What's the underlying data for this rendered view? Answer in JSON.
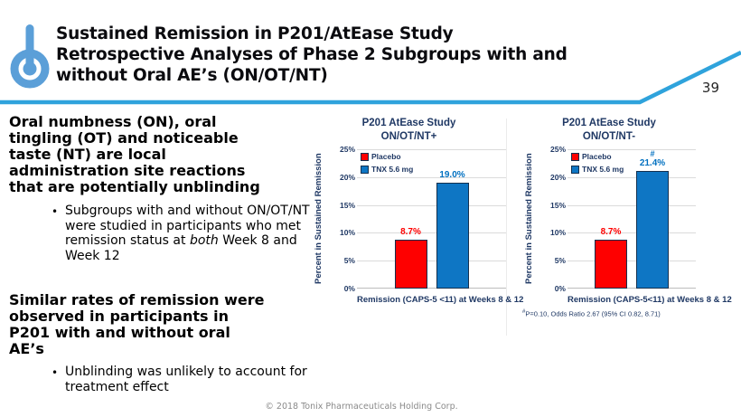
{
  "page_number": "39",
  "header": {
    "title_lines": [
      "Sustained Remission in P201/AtEase Study",
      "Retrospective Analyses of Phase 2 Subgroups with and",
      "without Oral AE’s (ON/OT/NT)"
    ],
    "logo_icon": "power-button-icon",
    "logo_color": "#5B9FD8",
    "accent_line_color": "#2FA3DC"
  },
  "left_panel": {
    "heading1_lines": [
      "Oral numbness (ON), oral",
      "tingling (OT) and noticeable",
      "taste (NT) are local",
      "administration site reactions",
      "that are potentially unblinding"
    ],
    "bullet1": {
      "before": "Subgroups with and without ON/OT/NT were studied in participants who met remission status at ",
      "italic": "both",
      "after": " Week 8 and Week 12"
    },
    "heading2_lines": [
      "Similar rates of remission were",
      "observed in participants in",
      "P201 with and without oral",
      "AE’s"
    ],
    "bullet2": "Unblinding was unlikely to account for treatment effect",
    "bullet_char": "•"
  },
  "footer": {
    "copyright": "© 2018 Tonix Pharmaceuticals Holding Corp."
  },
  "chart_data": [
    {
      "type": "bar",
      "title": "P201 AtEase Study",
      "subtitle": "ON/OT/NT+",
      "ylabel": "Percent in Sustained Remission",
      "xlabel": "Remission (CAPS-5 <11) at Weeks 8 & 12",
      "categories": [
        "Remission (CAPS-5 <11) at Weeks 8 & 12"
      ],
      "ylim": [
        0,
        25
      ],
      "yticks": [
        "25%",
        "20%",
        "15%",
        "10%",
        "5%",
        "0%"
      ],
      "grid": true,
      "legend_position": "top-left",
      "series": [
        {
          "name": "Placebo",
          "value": 8.7,
          "label": "8.7%",
          "color": "#FE0000",
          "label_color": "#FE0000",
          "annotation": ""
        },
        {
          "name": "TNX 5.6 mg",
          "value": 19.0,
          "label": "19.0%",
          "color": "#0E76C4",
          "label_color": "#0070C0",
          "annotation": ""
        }
      ]
    },
    {
      "type": "bar",
      "title": "P201 AtEase Study",
      "subtitle": "ON/OT/NT-",
      "ylabel": "Percent in Sustained Remission",
      "xlabel": "Remission (CAPS-5<11) at Weeks 8 & 12",
      "categories": [
        "Remission (CAPS-5<11) at Weeks 8 & 12"
      ],
      "ylim": [
        0,
        25
      ],
      "yticks": [
        "25%",
        "20%",
        "15%",
        "10%",
        "5%",
        "0%"
      ],
      "grid": true,
      "legend_position": "top-left",
      "series": [
        {
          "name": "Placebo",
          "value": 8.7,
          "label": "8.7%",
          "color": "#FE0000",
          "label_color": "#FE0000",
          "annotation": ""
        },
        {
          "name": "TNX 5.6 mg",
          "value": 21.4,
          "label": "21.4%",
          "color": "#0E76C4",
          "label_color": "#0070C0",
          "annotation": "#"
        }
      ],
      "footnote_sup": "#",
      "footnote_text": "P=0.10, Odds Ratio 2.67 (95% CI 0.82, 8.71)"
    }
  ]
}
